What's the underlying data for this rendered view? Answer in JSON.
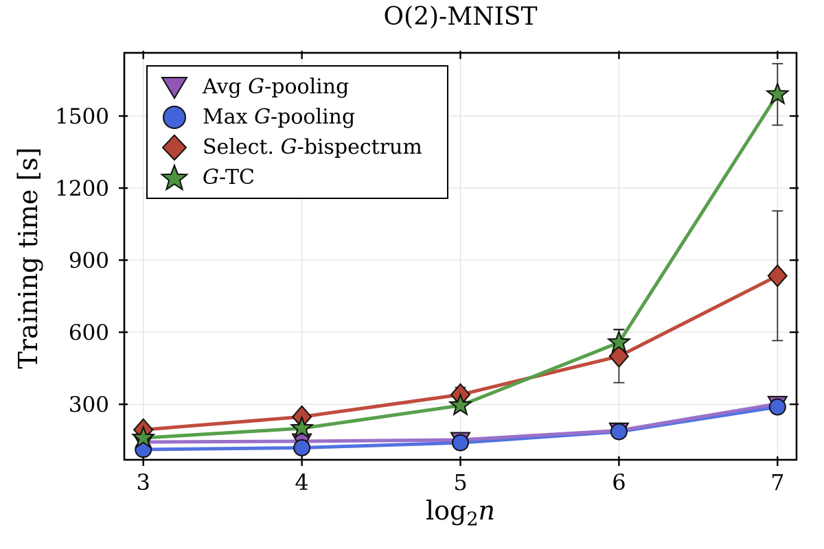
{
  "chart_data": {
    "type": "line",
    "title": "O(2)-MNIST",
    "ylabel": "Training time [s]",
    "xlabel": "log2(n)",
    "xlabel_parts": [
      {
        "t": "log",
        "style": "normal"
      },
      {
        "t": "2",
        "style": "subscript"
      },
      {
        "t": "n",
        "style": "italic"
      }
    ],
    "x": [
      3,
      4,
      5,
      6,
      7
    ],
    "xticks": [
      3,
      4,
      5,
      6,
      7
    ],
    "yticks": [
      300,
      600,
      900,
      1200,
      1500
    ],
    "xlim": [
      2.88,
      7.12
    ],
    "ylim": [
      69,
      1763
    ],
    "grid": true,
    "legend_position": "upper left",
    "axis_color": "#000000",
    "grid_color": "#e2e2e2",
    "errorbar_color": "#2e2e2e",
    "series": [
      {
        "name": "avg-g-pooling",
        "label": "Avg G-pooling",
        "label_parts": [
          {
            "t": "Avg ",
            "i": false
          },
          {
            "t": "G",
            "i": true
          },
          {
            "t": "-pooling",
            "i": false
          }
        ],
        "marker": "triangle-down",
        "color": "#8f57b4",
        "line_color": "#9a70c9",
        "values": [
          143,
          146,
          152,
          191,
          302
        ],
        "errors": [
          5,
          5,
          6,
          8,
          12
        ]
      },
      {
        "name": "max-g-pooling",
        "label": "Max G-pooling",
        "label_parts": [
          {
            "t": "Max ",
            "i": false
          },
          {
            "t": "G",
            "i": true
          },
          {
            "t": "-pooling",
            "i": false
          }
        ],
        "marker": "circle",
        "color": "#4363d8",
        "line_color": "#5272e0",
        "values": [
          112,
          119,
          140,
          186,
          289
        ],
        "errors": [
          4,
          5,
          6,
          7,
          10
        ]
      },
      {
        "name": "select-g-bispectrum",
        "label": "Select. G-bispectrum",
        "label_parts": [
          {
            "t": "Select. ",
            "i": false
          },
          {
            "t": "G",
            "i": true
          },
          {
            "t": "-bispectrum",
            "i": false
          }
        ],
        "marker": "diamond",
        "color": "#b44435",
        "line_color": "#c04c3d",
        "values": [
          194,
          248,
          340,
          500,
          835
        ],
        "errors": [
          10,
          15,
          30,
          110,
          270
        ]
      },
      {
        "name": "g-tc",
        "label": "G-TC",
        "label_parts": [
          {
            "t": "G",
            "i": true
          },
          {
            "t": "-TC",
            "i": false
          }
        ],
        "marker": "star",
        "color": "#4e9340",
        "line_color": "#57a04b",
        "values": [
          160,
          200,
          295,
          557,
          1590
        ],
        "errors": [
          8,
          12,
          18,
          55,
          128
        ]
      }
    ]
  }
}
